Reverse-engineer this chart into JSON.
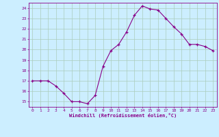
{
  "x": [
    0,
    1,
    2,
    3,
    4,
    5,
    6,
    7,
    8,
    9,
    10,
    11,
    12,
    13,
    14,
    15,
    16,
    17,
    18,
    19,
    20,
    21,
    22,
    23
  ],
  "y": [
    17,
    17,
    17,
    16.5,
    15.8,
    15,
    15,
    14.8,
    15.6,
    18.4,
    19.9,
    20.5,
    21.7,
    23.3,
    24.2,
    23.9,
    23.8,
    23.0,
    22.2,
    21.5,
    20.5,
    20.5,
    20.3,
    19.9
  ],
  "line_color": "#880088",
  "marker_color": "#880088",
  "bg_color": "#cceeff",
  "grid_color": "#aaccbb",
  "xlabel": "Windchill (Refroidissement éolien,°C)",
  "xlabel_color": "#880088",
  "tick_color": "#880088",
  "ylim": [
    14.5,
    24.5
  ],
  "xlim": [
    -0.5,
    23.5
  ],
  "yticks": [
    15,
    16,
    17,
    18,
    19,
    20,
    21,
    22,
    23,
    24
  ],
  "xticks": [
    0,
    1,
    2,
    3,
    4,
    5,
    6,
    7,
    8,
    9,
    10,
    11,
    12,
    13,
    14,
    15,
    16,
    17,
    18,
    19,
    20,
    21,
    22,
    23
  ],
  "figsize": [
    3.2,
    2.0
  ],
  "dpi": 100
}
